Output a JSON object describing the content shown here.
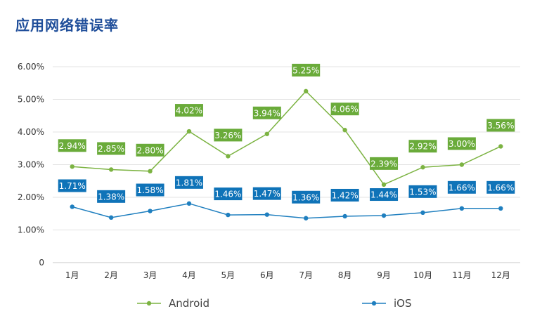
{
  "header": {
    "title": "应用网络错误率"
  },
  "chart_data": {
    "type": "line",
    "title": "应用网络错误率",
    "categories": [
      "1月",
      "2月",
      "3月",
      "4月",
      "5月",
      "6月",
      "7月",
      "8月",
      "9月",
      "10月",
      "11月",
      "12月"
    ],
    "y_ticks": [
      0,
      1,
      2,
      3,
      4,
      5,
      6
    ],
    "y_tick_labels": [
      "0",
      "1.00%",
      "2.00%",
      "3.00%",
      "4.00%",
      "5.00%",
      "6.00%"
    ],
    "ylim": [
      0,
      6
    ],
    "grid": true,
    "legend_position": "bottom",
    "series": [
      {
        "name": "Android",
        "color": "#7cb342",
        "label_bg": "#6aab3a",
        "values": [
          2.94,
          2.85,
          2.8,
          4.02,
          3.26,
          3.94,
          5.25,
          4.06,
          2.39,
          2.92,
          3.0,
          3.56
        ],
        "labels": [
          "2.94%",
          "2.85%",
          "2.80%",
          "4.02%",
          "3.26%",
          "3.94%",
          "5.25%",
          "4.06%",
          "2.39%",
          "2.92%",
          "3.00%",
          "3.56%"
        ]
      },
      {
        "name": "iOS",
        "color": "#1f7fbf",
        "label_bg": "#0f73b8",
        "values": [
          1.71,
          1.38,
          1.58,
          1.81,
          1.46,
          1.47,
          1.36,
          1.42,
          1.44,
          1.53,
          1.66,
          1.66
        ],
        "labels": [
          "1.71%",
          "1.38%",
          "1.58%",
          "1.81%",
          "1.46%",
          "1.47%",
          "1.36%",
          "1.42%",
          "1.44%",
          "1.53%",
          "1.66%",
          "1.66%"
        ]
      }
    ]
  }
}
